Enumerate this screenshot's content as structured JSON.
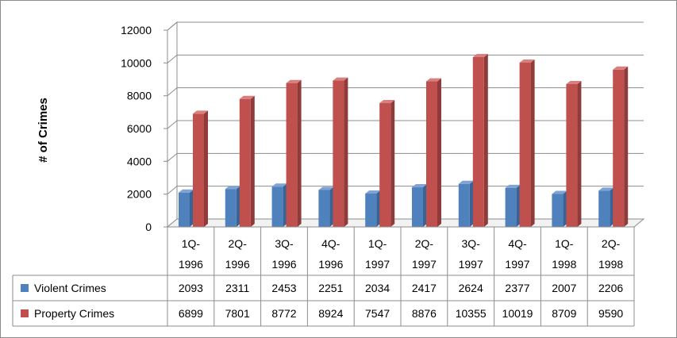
{
  "chart_data": {
    "type": "bar",
    "style": "3d-clustered-column-with-data-table",
    "ylabel": "# of Crimes",
    "ylim": [
      0,
      12000
    ],
    "yticks": [
      0,
      2000,
      4000,
      6000,
      8000,
      10000,
      12000
    ],
    "grid": true,
    "categories": [
      [
        "1Q-",
        "1996"
      ],
      [
        "2Q-",
        "1996"
      ],
      [
        "3Q-",
        "1996"
      ],
      [
        "4Q-",
        "1996"
      ],
      [
        "1Q-",
        "1997"
      ],
      [
        "2Q-",
        "1997"
      ],
      [
        "3Q-",
        "1997"
      ],
      [
        "4Q-",
        "1997"
      ],
      [
        "1Q-",
        "1998"
      ],
      [
        "2Q-",
        "1998"
      ]
    ],
    "series": [
      {
        "name": "Violent Crimes",
        "color": "#4f81bd",
        "side": "#3a6395",
        "top": "#7ea3d4",
        "values": [
          2093,
          2311,
          2453,
          2251,
          2034,
          2417,
          2624,
          2377,
          2007,
          2206
        ]
      },
      {
        "name": "Property Crimes",
        "color": "#c0504d",
        "side": "#8e3b39",
        "top": "#d9807e",
        "values": [
          6899,
          7801,
          8772,
          8924,
          7547,
          8876,
          10355,
          10019,
          8709,
          9590
        ]
      }
    ]
  }
}
